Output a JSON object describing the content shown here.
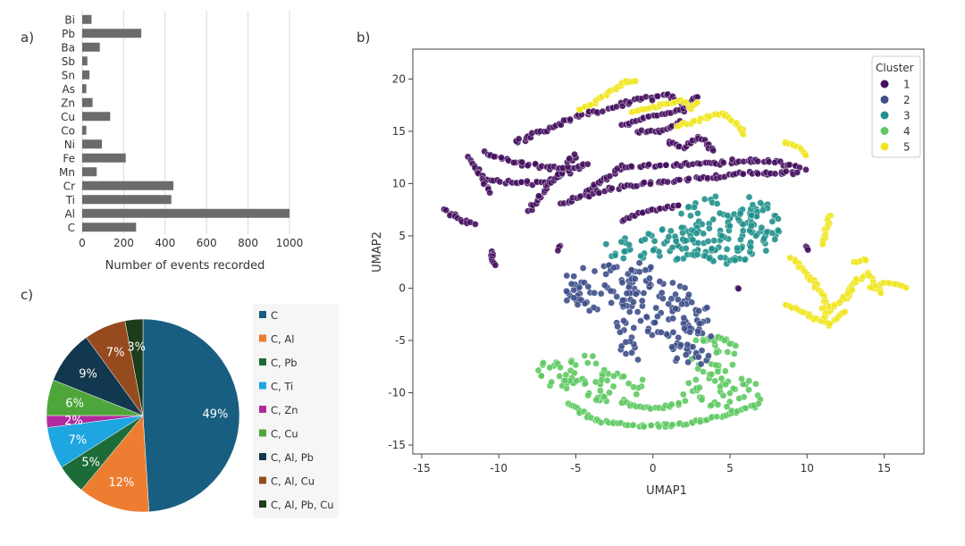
{
  "panels": {
    "a": "a)",
    "b": "b)",
    "c": "c)"
  },
  "colors": {
    "bar": "#6b6b6b",
    "grid": "#d8d8d8"
  },
  "chart_data": [
    {
      "id": "a",
      "type": "bar",
      "orientation": "horizontal",
      "categories": [
        "Bi",
        "Pb",
        "Ba",
        "Sb",
        "Sn",
        "As",
        "Zn",
        "Cu",
        "Co",
        "Ni",
        "Fe",
        "Mn",
        "Cr",
        "Ti",
        "Al",
        "C"
      ],
      "values": [
        45,
        285,
        85,
        25,
        35,
        20,
        50,
        135,
        20,
        95,
        210,
        70,
        440,
        430,
        1000,
        260
      ],
      "xlabel": "Number of events recorded",
      "xticks": [
        0,
        200,
        400,
        600,
        800,
        1000
      ],
      "xlim": [
        0,
        1000
      ],
      "grid": true
    },
    {
      "id": "b",
      "type": "scatter",
      "xlabel": "UMAP1",
      "ylabel": "UMAP2",
      "xlim": [
        -15,
        17
      ],
      "ylim": [
        -15,
        22
      ],
      "xticks": [
        -15,
        -10,
        -5,
        0,
        5,
        10,
        15
      ],
      "yticks": [
        -15,
        -10,
        -5,
        0,
        5,
        10,
        15,
        20
      ],
      "legend_title": "Cluster",
      "legend_position": "top-right",
      "clusters": [
        {
          "name": "1",
          "color": "#45115f"
        },
        {
          "name": "2",
          "color": "#3e4f8a"
        },
        {
          "name": "3",
          "color": "#21918c"
        },
        {
          "name": "4",
          "color": "#5ec962"
        },
        {
          "name": "5",
          "color": "#f0e51c"
        }
      ],
      "shapes": {
        "1": [
          {
            "type": "path",
            "pts": [
              [
                -4.5,
                9
              ],
              [
                -2,
                11.5
              ],
              [
                1,
                11.8
              ],
              [
                4,
                12
              ],
              [
                7,
                12.2
              ],
              [
                10,
                11.5
              ]
            ],
            "w": 0.9
          },
          {
            "type": "path",
            "pts": [
              [
                -6,
                8
              ],
              [
                -3,
                9.5
              ],
              [
                0,
                10
              ],
              [
                3,
                10.5
              ],
              [
                6,
                11
              ],
              [
                9.5,
                11
              ]
            ],
            "w": 0.9
          },
          {
            "type": "path",
            "pts": [
              [
                -11,
                13
              ],
              [
                -9,
                12
              ],
              [
                -7,
                11.5
              ],
              [
                -5,
                11.3
              ]
            ],
            "w": 1.0
          },
          {
            "type": "path",
            "pts": [
              [
                -11,
                10.5
              ],
              [
                -9,
                10
              ],
              [
                -7,
                10.2
              ],
              [
                -4,
                12
              ]
            ],
            "w": 1.0
          },
          {
            "type": "path",
            "pts": [
              [
                -8,
                7.5
              ],
              [
                -7,
                9.5
              ],
              [
                -6,
                11
              ],
              [
                -5,
                13
              ]
            ],
            "w": 0.8
          },
          {
            "type": "path",
            "pts": [
              [
                -9,
                14
              ],
              [
                -7,
                15
              ],
              [
                -5,
                16.5
              ],
              [
                -3,
                17
              ],
              [
                -1,
                18
              ],
              [
                1,
                18.5
              ],
              [
                2,
                17.5
              ]
            ],
            "w": 0.9
          },
          {
            "type": "path",
            "pts": [
              [
                -2,
                15.5
              ],
              [
                0,
                16.5
              ],
              [
                2,
                17
              ],
              [
                3,
                18.5
              ]
            ],
            "w": 0.7
          },
          {
            "type": "path",
            "pts": [
              [
                1,
                14
              ],
              [
                2,
                13.5
              ],
              [
                3,
                14.5
              ],
              [
                4,
                13
              ]
            ],
            "w": 0.6
          },
          {
            "type": "path",
            "pts": [
              [
                -13.5,
                7.5
              ],
              [
                -12.5,
                6.5
              ],
              [
                -11.5,
                6
              ]
            ],
            "w": 0.6
          },
          {
            "type": "path",
            "pts": [
              [
                -2,
                6.5
              ],
              [
                0,
                7.5
              ],
              [
                2,
                8
              ]
            ],
            "w": 0.6
          },
          {
            "type": "path",
            "pts": [
              [
                -12,
                12.5
              ],
              [
                -11.5,
                11.5
              ],
              [
                -10.5,
                9
              ]
            ],
            "w": 0.6
          },
          {
            "type": "path",
            "pts": [
              [
                -10.5,
                3.5
              ],
              [
                -10.2,
                2
              ]
            ],
            "w": 0.5
          },
          {
            "type": "path",
            "pts": [
              [
                -1,
                15
              ],
              [
                0.5,
                15
              ],
              [
                2,
                16
              ]
            ],
            "w": 0.6
          },
          {
            "type": "path",
            "pts": [
              [
                10,
                4
              ],
              [
                10.1,
                3.5
              ]
            ],
            "w": 0.4
          },
          {
            "type": "path",
            "pts": [
              [
                5.5,
                0
              ],
              [
                5.6,
                0
              ]
            ],
            "w": 0.4
          },
          {
            "type": "path",
            "pts": [
              [
                -6,
                4
              ],
              [
                -6.2,
                3.5
              ]
            ],
            "w": 0.4
          }
        ],
        "2": [
          {
            "type": "ellipse",
            "cx": -3.5,
            "cy": 0,
            "rx": 2.6,
            "ry": 2.3
          },
          {
            "type": "ellipse",
            "cx": 0.5,
            "cy": -2.5,
            "rx": 3.2,
            "ry": 3.2
          },
          {
            "type": "ellipse",
            "cx": 2.5,
            "cy": -5.5,
            "rx": 1.5,
            "ry": 2.0
          },
          {
            "type": "ellipse",
            "cx": -1.5,
            "cy": 1.5,
            "rx": 1.5,
            "ry": 1.5
          },
          {
            "type": "ellipse",
            "cx": -1.5,
            "cy": -6,
            "rx": 1.0,
            "ry": 1.0
          }
        ],
        "3": [
          {
            "type": "ellipse",
            "cx": 4.5,
            "cy": 5.5,
            "rx": 3.3,
            "ry": 3.3
          },
          {
            "type": "ellipse",
            "cx": 1.5,
            "cy": 4,
            "rx": 2.5,
            "ry": 2.0
          },
          {
            "type": "ellipse",
            "cx": -1.5,
            "cy": 3.8,
            "rx": 2.0,
            "ry": 1.0
          },
          {
            "type": "ellipse",
            "cx": 6.5,
            "cy": 6,
            "rx": 1.8,
            "ry": 2.8
          }
        ],
        "4": [
          {
            "type": "ellipse",
            "cx": -5,
            "cy": -8,
            "rx": 2.5,
            "ry": 1.8
          },
          {
            "type": "ellipse",
            "cx": -2.5,
            "cy": -9.5,
            "rx": 2.2,
            "ry": 1.5
          },
          {
            "type": "ellipse",
            "cx": 4.5,
            "cy": -10,
            "rx": 2.8,
            "ry": 1.6
          },
          {
            "type": "ellipse",
            "cx": 4,
            "cy": -6.5,
            "rx": 1.6,
            "ry": 1.8
          },
          {
            "type": "path",
            "pts": [
              [
                -5.5,
                -11
              ],
              [
                -4,
                -12.5
              ],
              [
                -1,
                -13.2
              ],
              [
                2,
                -13
              ],
              [
                5,
                -12
              ],
              [
                7,
                -11
              ]
            ],
            "w": 0.8
          },
          {
            "type": "path",
            "pts": [
              [
                -2,
                -11
              ],
              [
                0,
                -11.5
              ],
              [
                2,
                -11
              ]
            ],
            "w": 0.6
          },
          {
            "type": "path",
            "pts": [
              [
                3,
                -5
              ],
              [
                4.5,
                -4.8
              ],
              [
                5.5,
                -5.5
              ]
            ],
            "w": 0.8
          }
        ],
        "5": [
          {
            "type": "path",
            "pts": [
              [
                -4.8,
                17
              ],
              [
                -3.5,
                18
              ],
              [
                -2,
                19.5
              ],
              [
                -1,
                20
              ]
            ],
            "w": 0.6
          },
          {
            "type": "path",
            "pts": [
              [
                -1.5,
                16.8
              ],
              [
                0.5,
                17.5
              ],
              [
                2,
                18
              ]
            ],
            "w": 0.5
          },
          {
            "type": "path",
            "pts": [
              [
                1.5,
                15.5
              ],
              [
                3,
                16
              ],
              [
                4.5,
                16.8
              ],
              [
                5.5,
                15.5
              ],
              [
                6,
                14.5
              ]
            ],
            "w": 0.6
          },
          {
            "type": "path",
            "pts": [
              [
                2,
                17.8
              ],
              [
                2.5,
                17.2
              ],
              [
                3,
                18
              ]
            ],
            "w": 0.5
          },
          {
            "type": "path",
            "pts": [
              [
                8.5,
                14
              ],
              [
                9.5,
                13.5
              ],
              [
                10,
                12.5
              ]
            ],
            "w": 0.5
          },
          {
            "type": "path",
            "pts": [
              [
                9,
                3
              ],
              [
                10.5,
                0.5
              ],
              [
                11.5,
                -2
              ],
              [
                11,
                -3
              ]
            ],
            "w": 0.6
          },
          {
            "type": "path",
            "pts": [
              [
                8.5,
                -1.5
              ],
              [
                10,
                -2.5
              ],
              [
                11.5,
                -3.5
              ],
              [
                12.5,
                -2
              ]
            ],
            "w": 0.6
          },
          {
            "type": "path",
            "pts": [
              [
                12.5,
                -1
              ],
              [
                13,
                0.5
              ],
              [
                14,
                1.5
              ],
              [
                14.5,
                0
              ],
              [
                15,
                -0.5
              ]
            ],
            "w": 0.6
          },
          {
            "type": "path",
            "pts": [
              [
                14,
                0
              ],
              [
                15,
                0.5
              ],
              [
                16,
                0.3
              ],
              [
                16.5,
                0
              ]
            ],
            "w": 0.5
          },
          {
            "type": "path",
            "pts": [
              [
                11.5,
                7
              ],
              [
                11.2,
                5.5
              ],
              [
                11,
                4
              ]
            ],
            "w": 0.5
          },
          {
            "type": "path",
            "pts": [
              [
                11,
                -2
              ],
              [
                12,
                -1.5
              ],
              [
                13,
                0
              ]
            ],
            "w": 0.4
          },
          {
            "type": "path",
            "pts": [
              [
                13,
                2.5
              ],
              [
                14,
                2.8
              ]
            ],
            "w": 0.4
          }
        ]
      }
    },
    {
      "id": "c",
      "type": "pie",
      "labels": [
        "C",
        "C, Al",
        "C, Pb",
        "C, Ti",
        "C, Zn",
        "C, Cu",
        "C, Al, Pb",
        "C, Al, Cu",
        "C, Al, Pb, Cu"
      ],
      "values": [
        49,
        12,
        5,
        7,
        2,
        6,
        9,
        7,
        3
      ],
      "value_labels": [
        "49%",
        "12%",
        "5%",
        "7%",
        "2%",
        "6%",
        "9%",
        "7%",
        "3%"
      ],
      "colors": [
        "#185e80",
        "#ed7d31",
        "#1e6b3a",
        "#1da6e0",
        "#b02a9e",
        "#4ea63b",
        "#12384f",
        "#964b1f",
        "#1b3d1a"
      ],
      "legend_position": "right"
    }
  ]
}
